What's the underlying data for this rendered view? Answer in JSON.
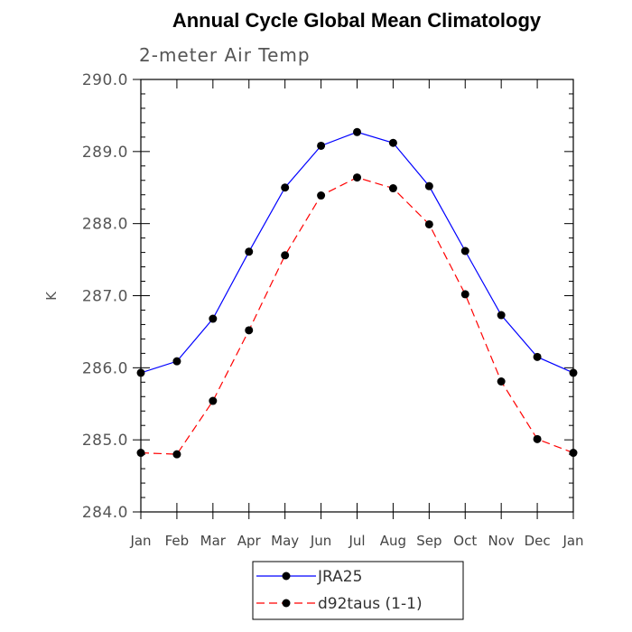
{
  "chart_data": {
    "type": "line",
    "title": "Annual Cycle Global Mean Climatology",
    "subtitle": "2-meter Air Temp",
    "xlabel": "",
    "ylabel": "K",
    "categories": [
      "Jan",
      "Feb",
      "Mar",
      "Apr",
      "May",
      "Jun",
      "Jul",
      "Aug",
      "Sep",
      "Oct",
      "Nov",
      "Dec",
      "Jan"
    ],
    "ylim": [
      284.0,
      290.0
    ],
    "yticks": [
      "284.0",
      "285.0",
      "286.0",
      "287.0",
      "288.0",
      "289.0",
      "290.0"
    ],
    "legend_position": "bottom-center",
    "series": [
      {
        "name": "JRA25",
        "color": "#0000ff",
        "line_style": "solid",
        "marker": "filled-circle",
        "values": [
          285.93,
          286.09,
          286.68,
          287.61,
          288.5,
          289.08,
          289.27,
          289.12,
          288.52,
          287.62,
          286.73,
          286.15,
          285.93
        ]
      },
      {
        "name": "d92taus (1-1)",
        "color": "#ff0000",
        "line_style": "dashed",
        "marker": "filled-circle",
        "values": [
          284.82,
          284.8,
          285.54,
          286.52,
          287.56,
          288.39,
          288.64,
          288.49,
          287.99,
          287.02,
          285.81,
          285.01,
          284.82
        ]
      }
    ]
  }
}
